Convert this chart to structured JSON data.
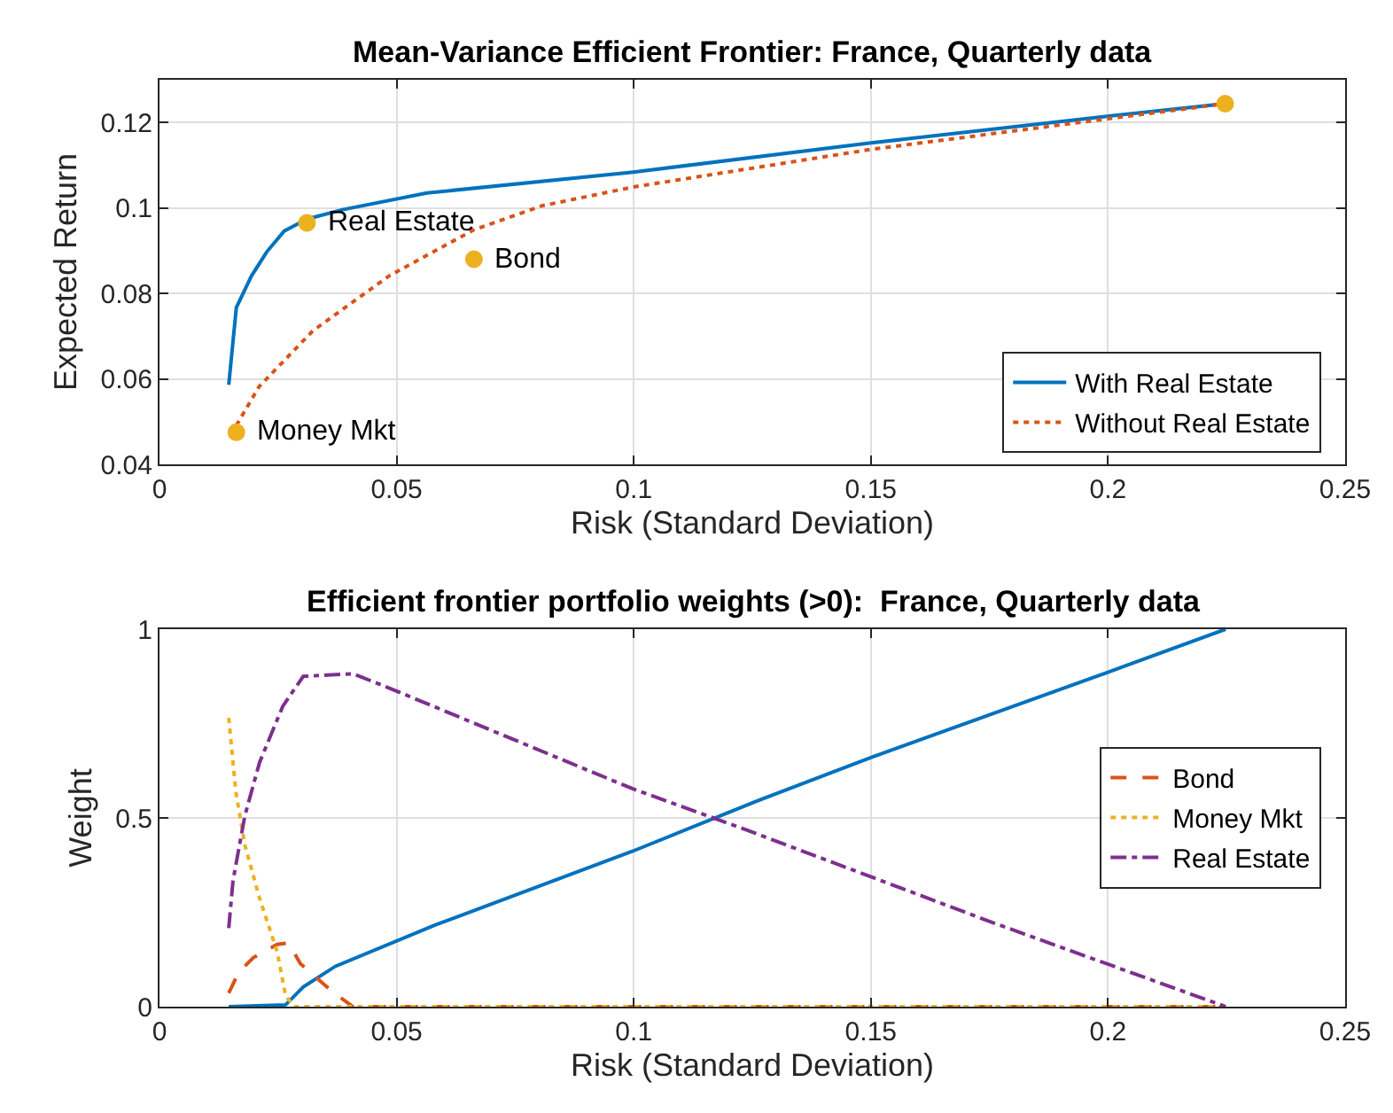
{
  "chart_data": [
    {
      "type": "line",
      "title": "Mean-Variance Efficient Frontier: France, Quarterly data",
      "xlabel": "Risk (Standard Deviation)",
      "ylabel": "Expected Return",
      "xlim": [
        0,
        0.25
      ],
      "xticks": [
        0,
        0.05,
        0.1,
        0.15,
        0.2,
        0.25
      ],
      "ylim": [
        0.04,
        0.13
      ],
      "yticks": [
        0.04,
        0.06,
        0.08,
        0.1,
        0.12
      ],
      "grid": true,
      "legend": "bottom right",
      "series": [
        {
          "name": "With Real Estate",
          "color": "#0072bd",
          "line_style": "solid",
          "x": [
            0.0146,
            0.0162,
            0.0194,
            0.0226,
            0.0263,
            0.0311,
            0.0386,
            0.0564,
            0.0999,
            0.15,
            0.2002,
            0.2247
          ],
          "values": [
            0.0586,
            0.0767,
            0.0841,
            0.0897,
            0.0946,
            0.0974,
            0.0996,
            0.1035,
            0.1084,
            0.1152,
            0.1215,
            0.1244
          ]
        },
        {
          "name": "Without Real Estate",
          "color": "#d95319",
          "line_style": "dotted",
          "x": [
            0.0162,
            0.021,
            0.0323,
            0.0484,
            0.0663,
            0.0806,
            0.0999,
            0.15,
            0.2002,
            0.2247
          ],
          "values": [
            0.0491,
            0.0582,
            0.0712,
            0.0841,
            0.0949,
            0.1005,
            0.1049,
            0.1137,
            0.1209,
            0.1244
          ]
        },
        {
          "type": "scatter",
          "color": "#edb120",
          "marker": "circle",
          "x": [
            0.2247,
            0.0311,
            0.0663,
            0.0162
          ],
          "values": [
            0.1244,
            0.0965,
            0.088,
            0.0475
          ]
        }
      ],
      "annotations": [
        {
          "text": "Real Estate",
          "x": 0.0311,
          "y": 0.0965
        },
        {
          "text": "Bond",
          "x": 0.0663,
          "y": 0.088
        },
        {
          "text": "Money Mkt",
          "x": 0.0162,
          "y": 0.0475
        }
      ]
    },
    {
      "type": "line",
      "title": "Efficient frontier portfolio weights (>0):  France, Quarterly data",
      "xlabel": "Risk (Standard Deviation)",
      "ylabel": "Weight",
      "xlim": [
        0,
        0.25
      ],
      "xticks": [
        0,
        0.05,
        0.1,
        0.15,
        0.2,
        0.25
      ],
      "ylim": [
        0,
        1
      ],
      "yticks": [
        0,
        0.5,
        1
      ],
      "grid": true,
      "legend": "right",
      "series": [
        {
          "color": "#0072bd",
          "line_style": "solid",
          "x": [
            0.0146,
            0.0266,
            0.0303,
            0.0371,
            0.0581,
            0.0998,
            0.126,
            0.15,
            0.2,
            0.2248
          ],
          "values": [
            0,
            0.005,
            0.052,
            0.107,
            0.216,
            0.412,
            0.545,
            0.66,
            0.886,
            1.0
          ]
        },
        {
          "name": "Bond",
          "color": "#d95319",
          "line_style": "dashed",
          "x": [
            0.0146,
            0.0167,
            0.0198,
            0.0248,
            0.0272,
            0.0297,
            0.0365,
            0.0408,
            0.2248
          ],
          "values": [
            0.036,
            0.091,
            0.13,
            0.165,
            0.169,
            0.114,
            0.039,
            0,
            0
          ]
        },
        {
          "name": "Money Mkt",
          "color": "#edb120",
          "line_style": "dotted",
          "x": [
            0.0146,
            0.0161,
            0.018,
            0.0211,
            0.0248,
            0.0266,
            0.0285,
            0.2248
          ],
          "values": [
            0.765,
            0.569,
            0.428,
            0.287,
            0.146,
            0.028,
            0,
            0
          ]
        },
        {
          "name": "Real Estate",
          "color": "#7e2f8e",
          "line_style": "dashdot",
          "x": [
            0.0146,
            0.0155,
            0.018,
            0.0211,
            0.026,
            0.0303,
            0.0408,
            0.0494,
            0.0998,
            0.1223,
            0.1754,
            0.2248
          ],
          "values": [
            0.208,
            0.334,
            0.506,
            0.647,
            0.796,
            0.875,
            0.882,
            0.839,
            0.577,
            0.475,
            0.224,
            0
          ]
        }
      ]
    }
  ]
}
